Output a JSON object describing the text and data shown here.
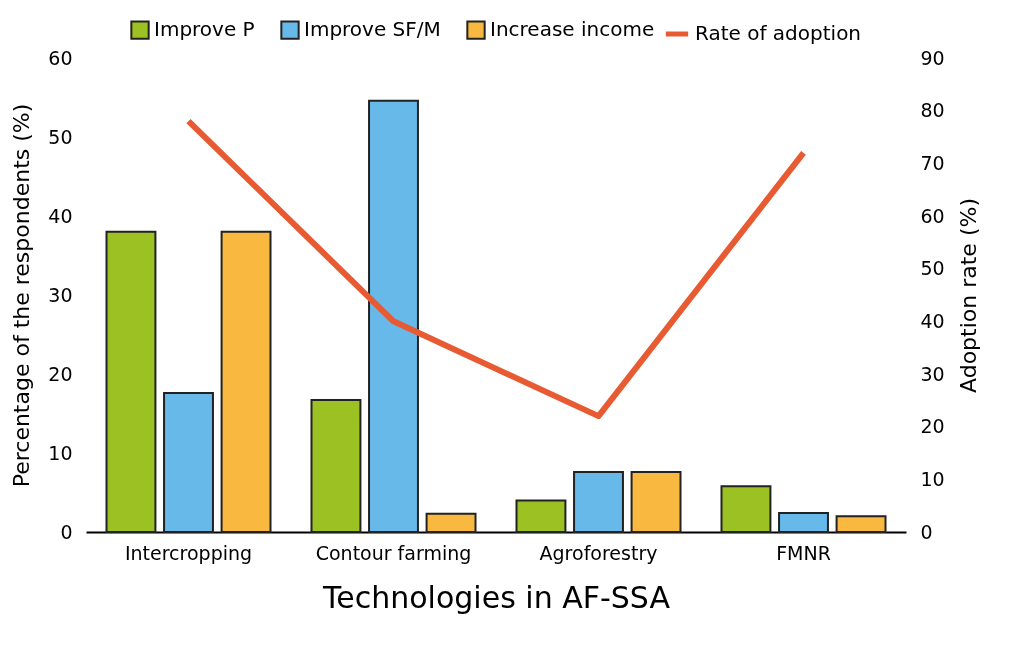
{
  "chart_data": {
    "type": "bar",
    "xlabel": "Technologies in AF-SSA",
    "ylabel": "Percentage of the respondents (%)",
    "y2label": "Adoption rate (%)",
    "categories": [
      "Intercropping",
      "Contour farming",
      "Agroforestry",
      "FMNR"
    ],
    "series": [
      {
        "name": "Improve P",
        "color": "#9bc122",
        "values": [
          38,
          16.7,
          4.0,
          5.8
        ]
      },
      {
        "name": "Improve SF/M",
        "color": "#66b9e8",
        "values": [
          17.6,
          54.6,
          7.6,
          2.4
        ]
      },
      {
        "name": "Increase income",
        "color": "#f9b840",
        "values": [
          38,
          2.3,
          7.6,
          2.0
        ]
      },
      {
        "name": "Rate of adoption",
        "type": "line",
        "axis": "y2",
        "color": "#e85b32",
        "values": [
          78,
          40,
          22,
          72
        ]
      }
    ],
    "ylim": [
      0,
      60
    ],
    "yticks": [
      0,
      10,
      20,
      30,
      40,
      50,
      60
    ],
    "y2lim": [
      0,
      90
    ],
    "y2ticks": [
      0,
      10,
      20,
      30,
      40,
      50,
      60,
      70,
      80,
      90
    ],
    "legend": "top",
    "grid": false
  }
}
